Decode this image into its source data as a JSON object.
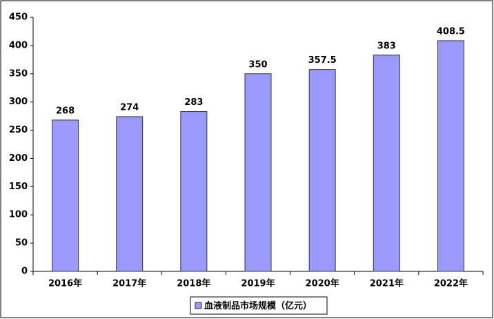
{
  "chart_data": {
    "type": "bar",
    "categories": [
      "2016年",
      "2017年",
      "2018年",
      "2019年",
      "2020年",
      "2021年",
      "2022年"
    ],
    "series": [
      {
        "name": "血液制品市场规模（亿元）",
        "color": "#9999ff",
        "values": [
          268,
          274,
          283,
          350,
          357.5,
          383,
          408.5
        ]
      }
    ],
    "ylim": [
      0,
      450
    ],
    "yticks": [
      0,
      50,
      100,
      150,
      200,
      250,
      300,
      350,
      400,
      450
    ],
    "grid": false,
    "legend": "bottom"
  }
}
